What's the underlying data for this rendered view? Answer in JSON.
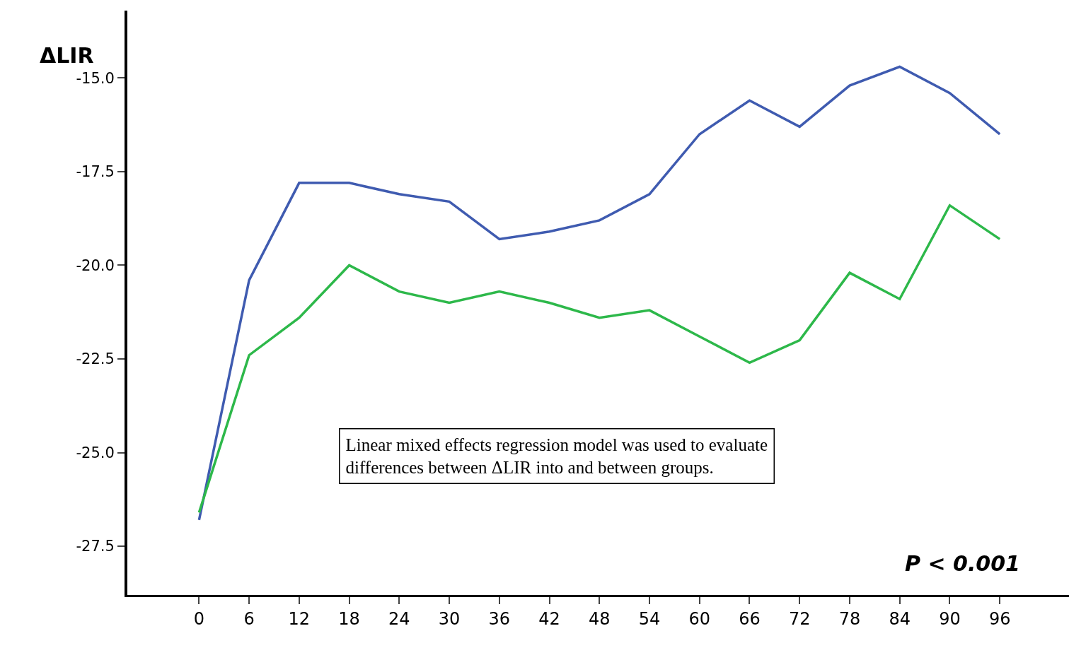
{
  "chart_data": {
    "type": "line",
    "ylabel": "ΔLIR",
    "x": [
      0,
      6,
      12,
      18,
      24,
      30,
      36,
      42,
      48,
      54,
      60,
      66,
      72,
      78,
      84,
      90,
      96
    ],
    "series": [
      {
        "color": "#3f5bb0",
        "values": [
          -26.8,
          -20.4,
          -17.8,
          -17.8,
          -18.1,
          -18.3,
          -19.3,
          -19.1,
          -18.8,
          -18.1,
          -16.5,
          -15.6,
          -16.3,
          -15.2,
          -14.7,
          -15.4,
          -16.5
        ]
      },
      {
        "color": "#2db84a",
        "values": [
          -26.6,
          -22.4,
          -21.4,
          -20.0,
          -20.7,
          -21.0,
          -20.7,
          -21.0,
          -21.4,
          -21.2,
          -21.9,
          -22.6,
          -22.0,
          -20.2,
          -20.9,
          -18.4,
          -19.3
        ]
      }
    ],
    "xlim": [
      -8.6,
      104.3
    ],
    "ylim": [
      -28.8,
      -13.2
    ],
    "xticks": [
      0,
      6,
      12,
      18,
      24,
      30,
      36,
      42,
      48,
      54,
      60,
      66,
      72,
      78,
      84,
      90,
      96
    ],
    "yticks": [
      {
        "value": -15,
        "label": "-15.0"
      },
      {
        "value": -17.5,
        "label": "-17.5"
      },
      {
        "value": -20,
        "label": "-20.0"
      },
      {
        "value": -22.5,
        "label": "-22.5"
      },
      {
        "value": -25,
        "label": "-25.0"
      },
      {
        "value": -27.5,
        "label": "-27.5"
      }
    ],
    "marker": "none",
    "line_style": "solid",
    "annotations": [
      "Linear mixed effects regression model was used to evaluate\ndifferences between ΔLIR into and between groups.",
      "P < 0.001"
    ]
  }
}
